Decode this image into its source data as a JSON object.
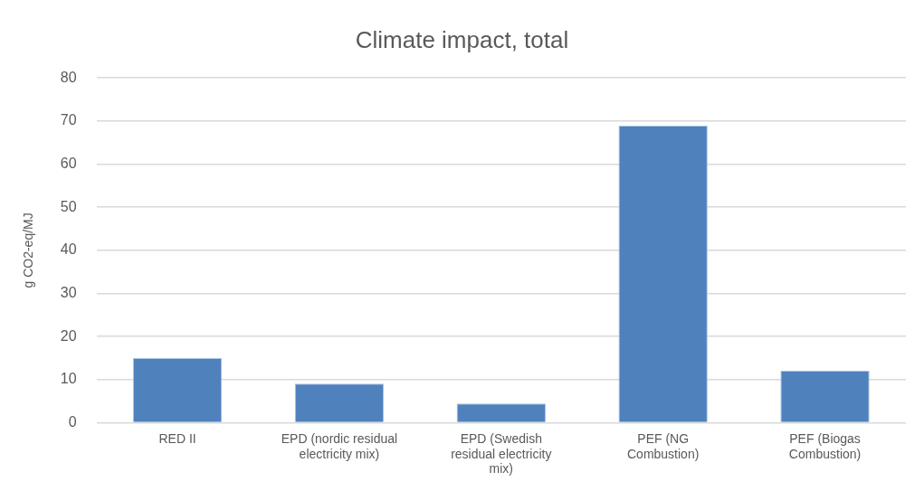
{
  "chart_data": {
    "type": "bar",
    "title": "Climate impact, total",
    "ylabel": "g CO2-eq/MJ",
    "categories": [
      "RED II",
      "EPD (nordic residual electricity mix)",
      "EPD (Swedish residual electricity mix)",
      "PEF (NG Combustion)",
      "PEF (Biogas Combustion)"
    ],
    "values": [
      15,
      9.1,
      4.5,
      68.9,
      12.1
    ],
    "color": "#4f81bd",
    "ylim": [
      0,
      80
    ],
    "yticks": [
      0,
      10,
      20,
      30,
      40,
      50,
      60,
      70,
      80
    ],
    "grid": "y",
    "legend": false
  }
}
